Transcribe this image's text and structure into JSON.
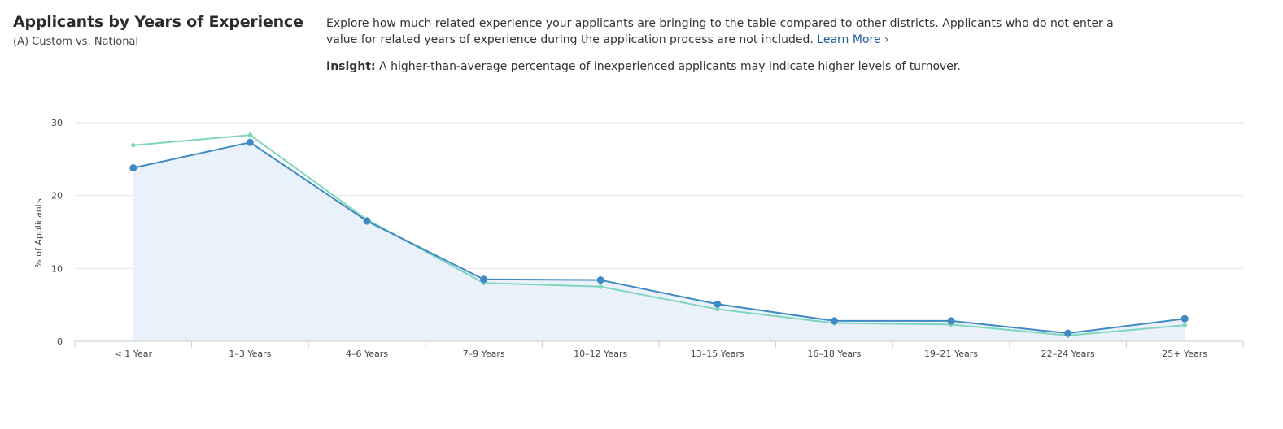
{
  "header": {
    "title": "Applicants by Years of Experience",
    "subtitle": "(A) Custom vs. National",
    "description": "Explore how much related experience your applicants are bringing to the table compared to other districts. Applicants who do not enter a value for related years of experience during the application process are not included.",
    "learn_more": "Learn More ›",
    "insight_label": "Insight:",
    "insight_text": "A higher-than-average percentage of inexperienced applicants may indicate higher levels of turnover."
  },
  "colors": {
    "custom": "#3f8ac4",
    "national": "#7fd6bd",
    "area_fill": "#eaf1fa",
    "grid": "#e6e6e6",
    "axis": "#cccccc"
  },
  "chart_data": {
    "type": "line",
    "title": "",
    "xlabel": "",
    "ylabel": "% of Applicants",
    "ylim": [
      0,
      30
    ],
    "yticks": [
      0,
      10,
      20,
      30
    ],
    "grid": true,
    "categories": [
      "< 1 Year",
      "1–3 Years",
      "4–6 Years",
      "7–9 Years",
      "10–12 Years",
      "13–15 Years",
      "16–18 Years",
      "19–21 Years",
      "22–24 Years",
      "25+ Years"
    ],
    "series": [
      {
        "key": "custom",
        "values": [
          23.8,
          27.3,
          16.5,
          8.5,
          8.4,
          5.1,
          2.8,
          2.8,
          1.1,
          3.1
        ],
        "area": true,
        "marker": "circle"
      },
      {
        "key": "national",
        "values": [
          26.9,
          28.3,
          16.7,
          8.0,
          7.5,
          4.4,
          2.5,
          2.3,
          0.8,
          2.2
        ],
        "area": false,
        "marker": "diamond"
      }
    ]
  }
}
